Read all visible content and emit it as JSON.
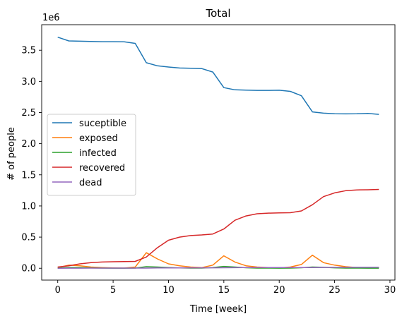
{
  "chart_data": {
    "type": "line",
    "title": "Total",
    "xlabel": "Time [week]",
    "ylabel": "# of people",
    "y_offset_text": "1e6",
    "xlim": [
      -1.45,
      30.45
    ],
    "ylim": [
      -0.19,
      3.91
    ],
    "x_ticks": [
      0,
      5,
      10,
      15,
      20,
      25,
      30
    ],
    "x_tick_labels": [
      "0",
      "5",
      "10",
      "15",
      "20",
      "25",
      "30"
    ],
    "y_ticks": [
      0,
      0.5,
      1,
      1.5,
      2,
      2.5,
      3,
      3.5
    ],
    "y_tick_labels": [
      "0.0",
      "0.5",
      "1.0",
      "1.5",
      "2.0",
      "2.5",
      "3.0",
      "3.5"
    ],
    "grid": false,
    "legend_position": "center-left",
    "x": [
      0,
      1,
      2,
      3,
      4,
      5,
      6,
      7,
      8,
      9,
      10,
      11,
      12,
      13,
      14,
      15,
      16,
      17,
      18,
      19,
      20,
      21,
      22,
      23,
      24,
      25,
      26,
      27,
      28,
      29
    ],
    "series": [
      {
        "name": "suceptible",
        "color": "#1f77b4",
        "values": [
          3.71,
          3.65,
          3.645,
          3.64,
          3.637,
          3.637,
          3.636,
          3.61,
          3.3,
          3.25,
          3.23,
          3.215,
          3.21,
          3.205,
          3.15,
          2.9,
          2.865,
          2.86,
          2.855,
          2.856,
          2.858,
          2.84,
          2.77,
          2.51,
          2.49,
          2.48,
          2.478,
          2.48,
          2.485,
          2.47
        ]
      },
      {
        "name": "exposed",
        "color": "#ff7f0e",
        "values": [
          0.01,
          0.05,
          0.04,
          0.02,
          0.01,
          0.005,
          0.003,
          0.02,
          0.25,
          0.15,
          0.07,
          0.04,
          0.02,
          0.01,
          0.05,
          0.2,
          0.1,
          0.04,
          0.02,
          0.01,
          0.005,
          0.02,
          0.06,
          0.21,
          0.09,
          0.05,
          0.025,
          0.012,
          0.01,
          0.01
        ]
      },
      {
        "name": "infected",
        "color": "#2ca02c",
        "values": [
          0.002,
          0.01,
          0.01,
          0.006,
          0.003,
          0.001,
          0.001,
          0.003,
          0.025,
          0.02,
          0.01,
          0.005,
          0.002,
          0.002,
          0.01,
          0.03,
          0.02,
          0.008,
          0.003,
          0.002,
          0.001,
          0.002,
          0.008,
          0.02,
          0.015,
          0.007,
          0.003,
          0.002,
          0.001,
          0.001
        ]
      },
      {
        "name": "recovered",
        "color": "#d62728",
        "values": [
          0.02,
          0.04,
          0.07,
          0.09,
          0.1,
          0.105,
          0.108,
          0.11,
          0.18,
          0.33,
          0.45,
          0.5,
          0.525,
          0.535,
          0.55,
          0.63,
          0.77,
          0.84,
          0.875,
          0.885,
          0.888,
          0.892,
          0.92,
          1.02,
          1.15,
          1.21,
          1.245,
          1.258,
          1.26,
          1.265
        ]
      },
      {
        "name": "dead",
        "color": "#9467bd",
        "values": [
          0.0,
          0.001,
          0.001,
          0.002,
          0.002,
          0.002,
          0.002,
          0.002,
          0.003,
          0.005,
          0.006,
          0.006,
          0.007,
          0.007,
          0.007,
          0.008,
          0.009,
          0.01,
          0.01,
          0.01,
          0.01,
          0.01,
          0.011,
          0.012,
          0.013,
          0.014,
          0.014,
          0.015,
          0.015,
          0.015
        ]
      }
    ]
  }
}
